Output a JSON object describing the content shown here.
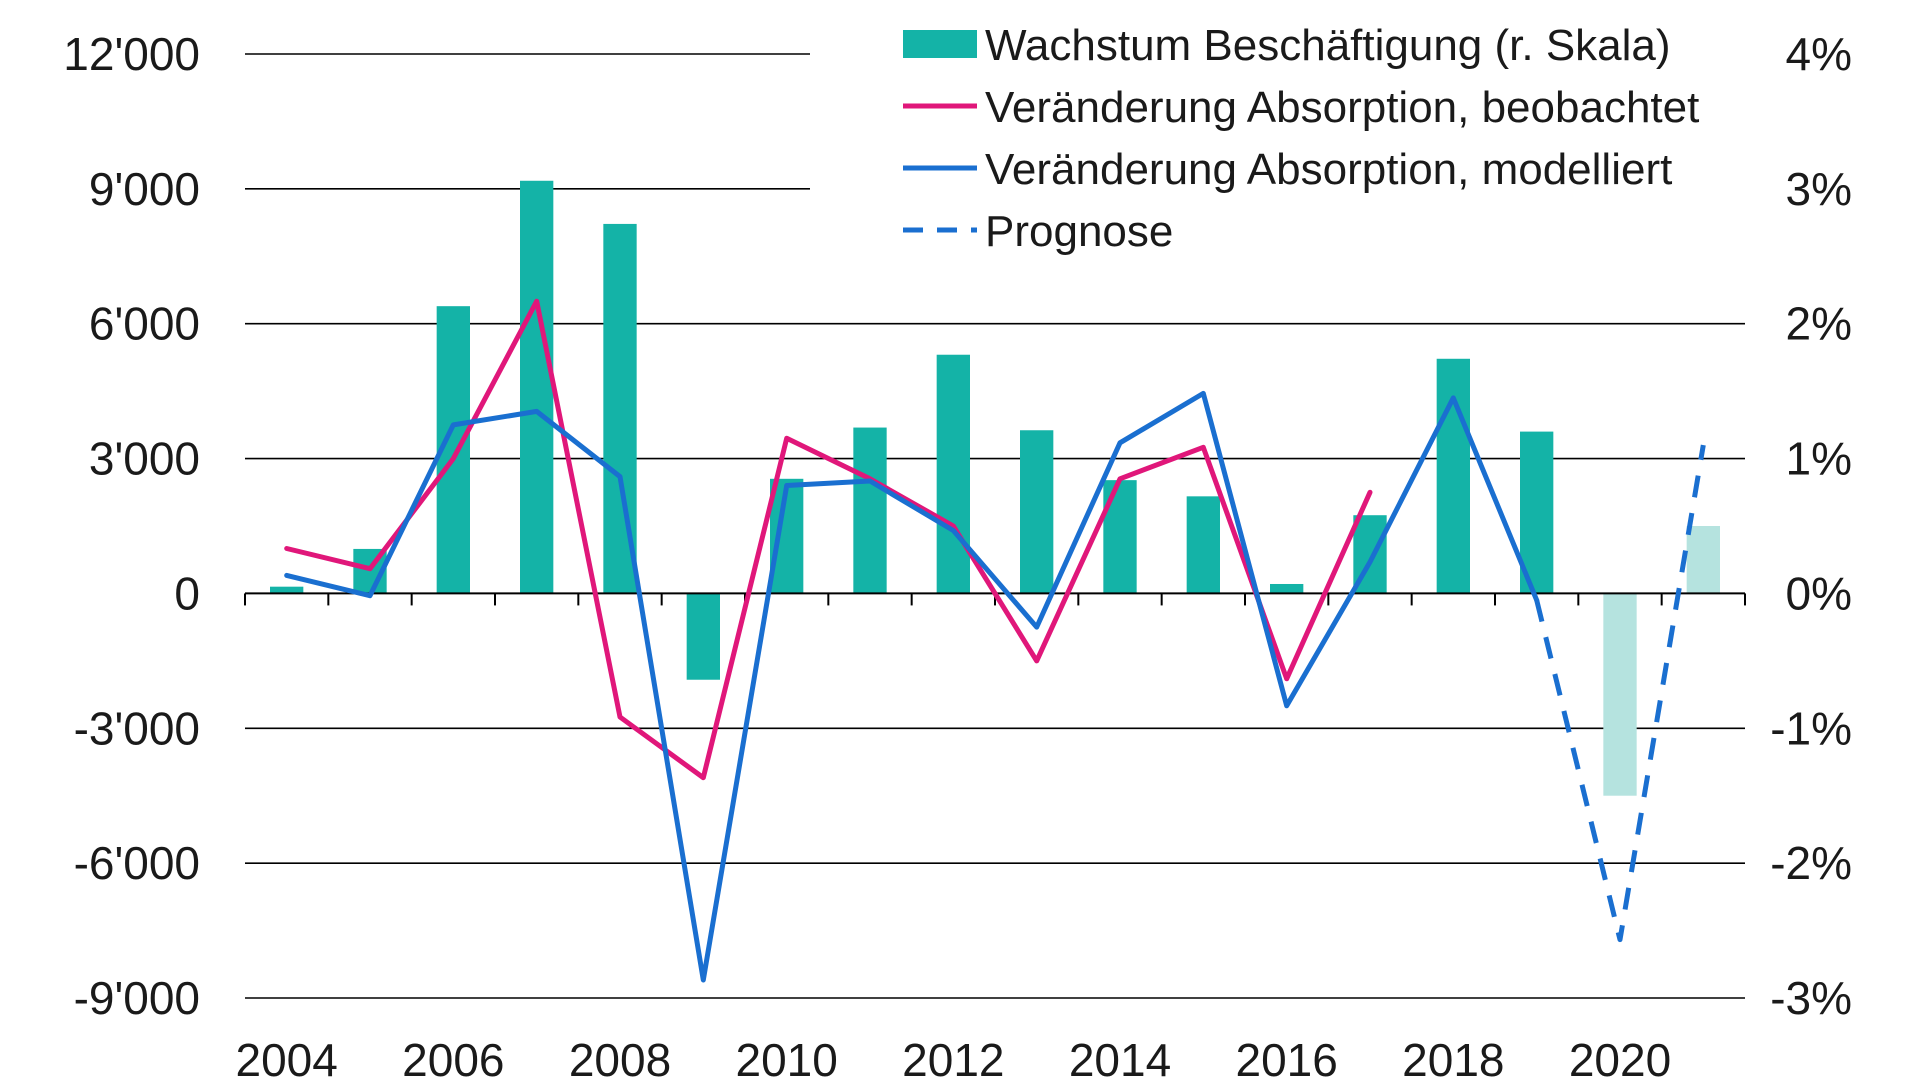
{
  "chart_data": {
    "type": "bar+line",
    "x": [
      2004,
      2005,
      2006,
      2007,
      2008,
      2009,
      2010,
      2011,
      2012,
      2013,
      2014,
      2015,
      2016,
      2017,
      2018,
      2019,
      2020,
      2021
    ],
    "x_tick_labels": [
      "2004",
      "2006",
      "2008",
      "2010",
      "2012",
      "2014",
      "2016",
      "2018",
      "2020"
    ],
    "y_left": {
      "ylim": [
        -9000,
        12000
      ],
      "tick_values": [
        12000,
        9000,
        6000,
        3000,
        0,
        -3000,
        -6000,
        -9000
      ],
      "tick_labels": [
        "12'000",
        "9'000",
        "6'000",
        "3'000",
        "0",
        "-3'000",
        "-6'000",
        "-9'000"
      ]
    },
    "y_right": {
      "ylim": [
        -3,
        4
      ],
      "tick_values": [
        4,
        3,
        2,
        1,
        0,
        -1,
        -2,
        -3
      ],
      "tick_labels": [
        "4%",
        "3%",
        "2%",
        "1%",
        "0%",
        "-1%",
        "-2%",
        "-3%"
      ]
    },
    "grid": true,
    "legend_position": "top-right",
    "series": [
      {
        "name": "Wachstum Beschäftigung (r. Skala)",
        "type": "bar",
        "axis": "right",
        "color": "#14b3a7",
        "forecast_color": "#b5e3df",
        "x": [
          2004,
          2005,
          2006,
          2007,
          2008,
          2009,
          2010,
          2011,
          2012,
          2013,
          2014,
          2015,
          2016,
          2017,
          2018,
          2019,
          2020,
          2021
        ],
        "values": [
          0.05,
          0.33,
          2.13,
          3.06,
          2.74,
          -0.64,
          0.85,
          1.23,
          1.77,
          1.21,
          0.84,
          0.72,
          0.07,
          0.58,
          1.74,
          1.2,
          -1.5,
          0.5
        ],
        "forecast_from": 2020
      },
      {
        "name": "Veränderung Absorption, beobachtet",
        "type": "line",
        "axis": "left",
        "color": "#e0177a",
        "x": [
          2004,
          2005,
          2006,
          2007,
          2008,
          2009,
          2010,
          2011,
          2012,
          2013,
          2014,
          2015,
          2016,
          2017
        ],
        "values": [
          1000,
          550,
          3000,
          6500,
          -2750,
          -4100,
          3450,
          2550,
          1500,
          -1500,
          2550,
          3250,
          -1900,
          2250
        ]
      },
      {
        "name": "Veränderung Absorption, modelliert",
        "type": "line",
        "axis": "left",
        "color": "#1a6fd0",
        "x": [
          2004,
          2005,
          2006,
          2007,
          2008,
          2009,
          2010,
          2011,
          2012,
          2013,
          2014,
          2015,
          2016,
          2017,
          2018,
          2019
        ],
        "values": [
          400,
          -50,
          3750,
          4050,
          2600,
          -8600,
          2400,
          2500,
          1400,
          -750,
          3350,
          4450,
          -2500,
          700,
          4350,
          -150
        ]
      },
      {
        "name": "Prognose",
        "type": "line",
        "style": "dashed",
        "axis": "left",
        "color": "#1a6fd0",
        "x": [
          2019,
          2020,
          2021
        ],
        "values": [
          -150,
          -7700,
          3300
        ]
      }
    ]
  }
}
